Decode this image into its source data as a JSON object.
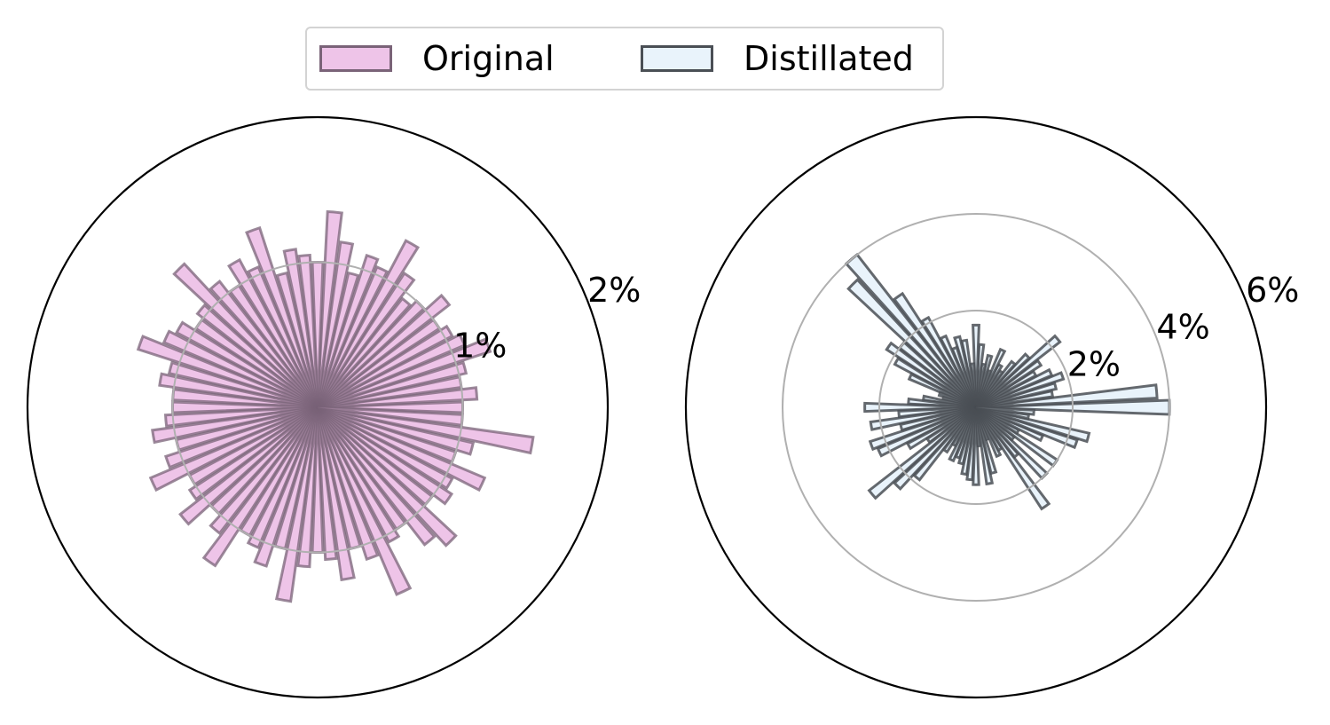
{
  "legend": {
    "items": [
      {
        "label": "Original",
        "fill": "#eec4e8",
        "stroke": "#7a6378"
      },
      {
        "label": "Distillated",
        "fill": "#e9f3fb",
        "stroke": "#4a4f55"
      }
    ]
  },
  "chart_data": [
    {
      "type": "polar-histogram",
      "series_name": "Original",
      "rmax": 2.0,
      "rtick_labels": [
        "1%",
        "2%"
      ],
      "rticks": [
        1,
        2
      ],
      "grid": true,
      "fill": "#eec4e8",
      "stroke": "#7a6378",
      "bins": 72,
      "values": [
        1.0,
        1.1,
        1.0,
        1.05,
        1.25,
        1.1,
        1.05,
        1.0,
        1.15,
        1.0,
        0.95,
        1.1,
        1.3,
        1.05,
        1.1,
        0.95,
        1.15,
        1.35,
        1.0,
        1.05,
        1.1,
        0.95,
        1.3,
        1.05,
        1.15,
        1.0,
        1.1,
        1.35,
        1.05,
        1.0,
        1.1,
        1.15,
        1.3,
        1.05,
        1.1,
        1.0,
        1.0,
        1.05,
        1.15,
        1.0,
        1.1,
        1.25,
        1.0,
        1.05,
        1.2,
        1.0,
        1.1,
        1.3,
        1.0,
        1.05,
        1.15,
        1.0,
        1.35,
        1.1,
        1.0,
        1.05,
        1.2,
        1.0,
        1.1,
        1.4,
        1.05,
        1.0,
        1.2,
        1.3,
        1.0,
        1.1,
        1.05,
        1.25,
        1.0,
        1.1,
        1.5,
        1.0
      ]
    },
    {
      "type": "polar-histogram",
      "series_name": "Distillated",
      "rmax": 6.0,
      "rtick_labels": [
        "2%",
        "4%",
        "6%"
      ],
      "rticks": [
        2,
        4,
        6
      ],
      "grid": true,
      "fill": "#e9f3fb",
      "stroke": "#4a4f55",
      "bins": 72,
      "values": [
        4.0,
        3.75,
        1.6,
        1.7,
        1.9,
        1.7,
        1.4,
        1.6,
        2.2,
        1.5,
        1.2,
        0.9,
        1.0,
        1.3,
        0.8,
        1.1,
        0.9,
        1.3,
        1.7,
        0.9,
        1.4,
        1.5,
        1.3,
        1.6,
        2.1,
        2.8,
        4.0,
        3.6,
        2.0,
        2.2,
        1.9,
        1.5,
        0.8,
        0.7,
        1.1,
        1.4,
        2.3,
        1.6,
        2.2,
        1.6,
        2.3,
        2.2,
        1.6,
        1.2,
        2.8,
        2.3,
        1.9,
        1.1,
        0.9,
        1.2,
        1.1,
        1.2,
        1.4,
        1.5,
        1.6,
        0.8,
        1.6,
        1.4,
        0.7,
        1.1,
        1.0,
        2.5,
        1.3,
        2.0,
        1.0,
        2.0,
        1.0,
        1.5,
        2.2,
        2.4,
        1.1,
        1.2
      ]
    }
  ]
}
